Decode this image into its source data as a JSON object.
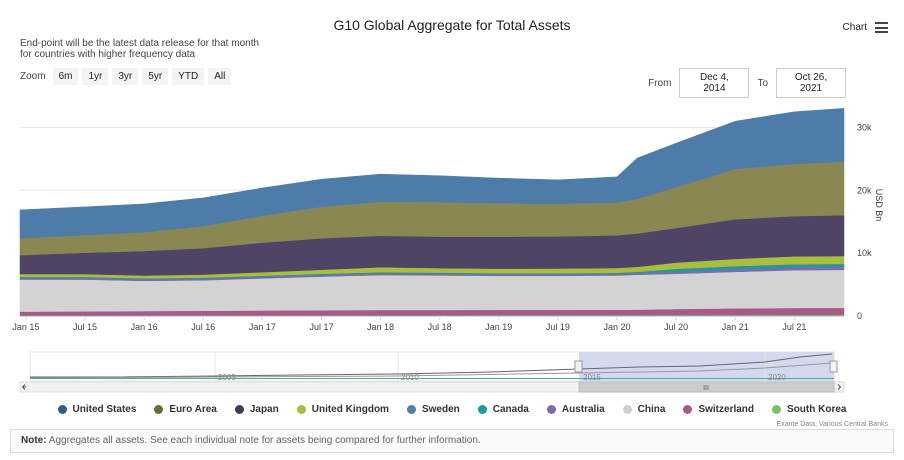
{
  "header": {
    "title": "G10 Global Aggregate for Total Assets",
    "subtitle_line1": "End-point will be the latest data release for that month",
    "subtitle_line2": "for countries with higher frequency data",
    "menu_label": "Chart"
  },
  "zoom": {
    "label": "Zoom",
    "buttons": [
      "6m",
      "1yr",
      "3yr",
      "5yr",
      "YTD",
      "All"
    ]
  },
  "range": {
    "from_label": "From",
    "from_value": "Dec 4, 2014",
    "to_label": "To",
    "to_value": "Oct 26, 2021"
  },
  "note": {
    "label": "Note:",
    "text": "Aggregates all assets. See each individual note for assets being compared for further information."
  },
  "credits": "Exante Data, Various Central Banks",
  "navigator": {
    "year_labels": [
      "2005",
      "2010",
      "2015",
      "2020"
    ],
    "scroll_grip": "III"
  },
  "chart_data": {
    "type": "area",
    "stacked": true,
    "title": "G10 Global Aggregate for Total Assets",
    "ylabel": "USD Bn",
    "ylim": [
      0,
      35000
    ],
    "y_ticks": [
      0,
      10000,
      20000,
      30000
    ],
    "y_tick_labels": [
      "0",
      "10k",
      "20k",
      "30k"
    ],
    "x_range": [
      2014.95,
      2021.92
    ],
    "x_ticks": [
      2015.0,
      2015.5,
      2016.0,
      2016.5,
      2017.0,
      2017.5,
      2018.0,
      2018.5,
      2019.0,
      2019.5,
      2020.0,
      2020.5,
      2021.0,
      2021.5
    ],
    "x_tick_labels": [
      "Jan 15",
      "Jul 15",
      "Jan 16",
      "Jul 16",
      "Jan 17",
      "Jul 17",
      "Jan 18",
      "Jul 18",
      "Jan 19",
      "Jul 19",
      "Jan 20",
      "Jul 20",
      "Jan 21",
      "Jul 21"
    ],
    "grid": true,
    "legend_position": "bottom",
    "x": [
      2014.95,
      2015.5,
      2016.0,
      2016.5,
      2017.0,
      2017.5,
      2018.0,
      2018.5,
      2019.0,
      2019.5,
      2020.0,
      2020.17,
      2020.5,
      2021.0,
      2021.5,
      2021.92
    ],
    "series": [
      {
        "name": "South Korea",
        "color": "#7fbf6a",
        "values": [
          100,
          100,
          110,
          110,
          120,
          120,
          130,
          130,
          140,
          140,
          150,
          150,
          160,
          170,
          180,
          190
        ]
      },
      {
        "name": "Switzerland",
        "color": "#a8588a",
        "values": [
          600,
          640,
          680,
          720,
          760,
          800,
          830,
          830,
          840,
          840,
          850,
          860,
          950,
          1050,
          1100,
          1100
        ]
      },
      {
        "name": "China",
        "color": "#d3d3d3",
        "values": [
          5100,
          5050,
          4800,
          4850,
          5100,
          5350,
          5550,
          5500,
          5400,
          5400,
          5450,
          5550,
          5600,
          5800,
          6000,
          6050
        ]
      },
      {
        "name": "Australia",
        "color": "#7e6aa9",
        "values": [
          250,
          250,
          240,
          250,
          250,
          260,
          270,
          260,
          250,
          250,
          250,
          260,
          350,
          420,
          470,
          480
        ]
      },
      {
        "name": "Canada",
        "color": "#1a9c9c",
        "values": [
          100,
          100,
          95,
          100,
          100,
          105,
          105,
          100,
          100,
          100,
          100,
          120,
          350,
          400,
          380,
          360
        ]
      },
      {
        "name": "Sweden",
        "color": "#4b7ea8",
        "values": [
          80,
          80,
          80,
          80,
          80,
          80,
          80,
          80,
          80,
          80,
          80,
          80,
          90,
          100,
          110,
          110
        ]
      },
      {
        "name": "United Kingdom",
        "color": "#a9be3e",
        "values": [
          450,
          450,
          430,
          480,
          560,
          650,
          800,
          720,
          720,
          750,
          760,
          800,
          1000,
          1150,
          1250,
          1250
        ]
      },
      {
        "name": "Japan",
        "color": "#4f4466",
        "values": [
          3000,
          3400,
          3900,
          4200,
          4700,
          5000,
          5000,
          5000,
          5100,
          5100,
          5200,
          5300,
          5500,
          6300,
          6400,
          6500
        ]
      },
      {
        "name": "Euro Area",
        "color": "#8a8753",
        "values": [
          2700,
          2800,
          3000,
          3500,
          4300,
          5000,
          5400,
          5500,
          5300,
          5200,
          5200,
          5500,
          6500,
          8000,
          8300,
          8500
        ]
      },
      {
        "name": "United States",
        "color": "#4e7ca8",
        "values": [
          4500,
          4500,
          4500,
          4500,
          4400,
          4400,
          4400,
          4200,
          4000,
          3800,
          4100,
          6500,
          7000,
          7600,
          8300,
          8500
        ]
      }
    ]
  }
}
